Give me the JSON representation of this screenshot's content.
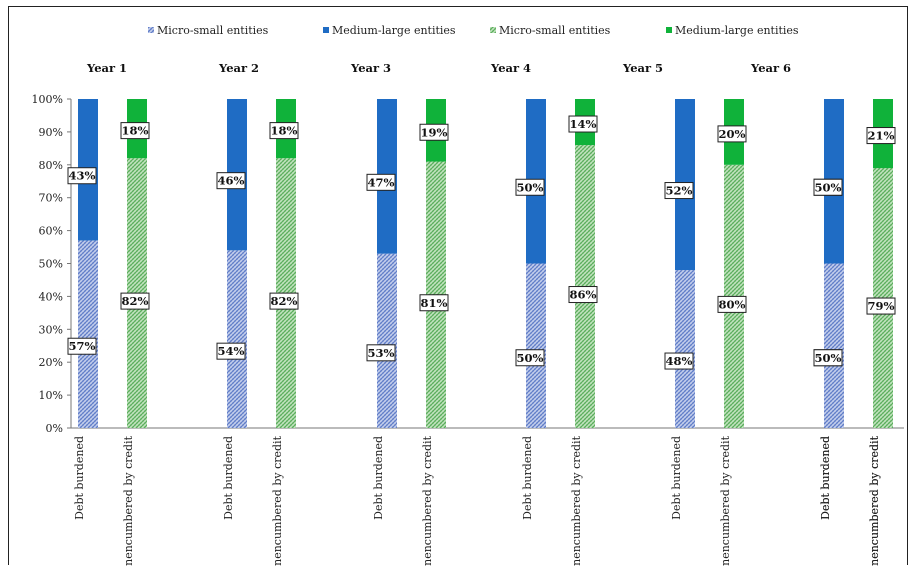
{
  "chart_data": {
    "type": "bar",
    "stacked": true,
    "percent_stacked": true,
    "grid": false,
    "legend_placement": "top",
    "legend": [
      {
        "name": "Micro-small entities",
        "color": "#8aa0d4",
        "pattern": "blue-hatch"
      },
      {
        "name": "Medium-large entities",
        "color": "#1f6cc4",
        "pattern": "solid-blue"
      },
      {
        "name": "Micro-small entities",
        "color": "#7fc083",
        "pattern": "green-hatch"
      },
      {
        "name": "Medium-large entities",
        "color": "#10b23a",
        "pattern": "solid-green"
      }
    ],
    "yticks": [
      "0%",
      "10%",
      "20%",
      "30%",
      "40%",
      "50%",
      "60%",
      "70%",
      "80%",
      "90%",
      "100%"
    ],
    "ylim": [
      0,
      100
    ],
    "categories": [
      "Debt burdened",
      "Unencumbered by credit"
    ],
    "years": [
      {
        "label": "Year 1",
        "debt": {
          "micro_small": 57,
          "medium_large": 43
        },
        "unencumbered": {
          "micro_small": 82,
          "medium_large": 18
        }
      },
      {
        "label": "Year 2",
        "debt": {
          "micro_small": 54,
          "medium_large": 46
        },
        "unencumbered": {
          "micro_small": 82,
          "medium_large": 18
        }
      },
      {
        "label": "Year 3",
        "debt": {
          "micro_small": 53,
          "medium_large": 47
        },
        "unencumbered": {
          "micro_small": 81,
          "medium_large": 19
        }
      },
      {
        "label": "Year 4",
        "debt": {
          "micro_small": 50,
          "medium_large": 50
        },
        "unencumbered": {
          "micro_small": 86,
          "medium_large": 14
        }
      },
      {
        "label": "Year 5",
        "debt": {
          "micro_small": 48,
          "medium_large": 52
        },
        "unencumbered": {
          "micro_small": 80,
          "medium_large": 20
        }
      },
      {
        "label": "Year 6",
        "debt": {
          "micro_small": 50,
          "medium_large": 50
        },
        "unencumbered": {
          "micro_small": 79,
          "medium_large": 21
        }
      },
      {
        "label": "",
        "debt": {
          "micro_small": 50,
          "medium_large": 50
        },
        "unencumbered": {
          "micro_small": 79,
          "medium_large": 21
        }
      }
    ],
    "colors": {
      "blue_solid": "#1f6cc4",
      "blue_hatch_bg": "#c9d3ee",
      "blue_hatch_fg": "#5f7cc8",
      "green_solid": "#10b23a",
      "green_hatch_bg": "#c8e6c4",
      "green_hatch_fg": "#59ad5b"
    }
  }
}
